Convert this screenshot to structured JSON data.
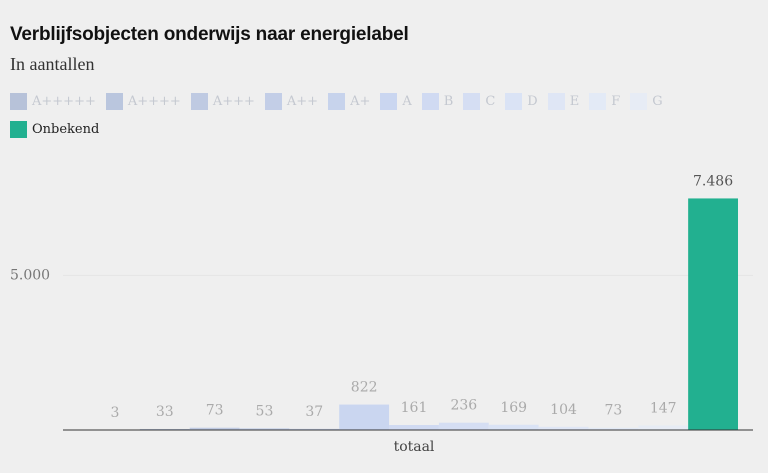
{
  "chart_data": {
    "type": "bar",
    "title": "Verblijfsobjecten onderwijs naar energielabel",
    "subtitle": "In aantallen",
    "categories": [
      "totaal"
    ],
    "series": [
      {
        "name": "A+++++",
        "color": "#b7c2d9",
        "values": [
          3
        ]
      },
      {
        "name": "A++++",
        "color": "#bac6de",
        "values": [
          33
        ]
      },
      {
        "name": "A+++",
        "color": "#bfcae2",
        "values": [
          73
        ]
      },
      {
        "name": "A++",
        "color": "#c3cee7",
        "values": [
          53
        ]
      },
      {
        "name": "A+",
        "color": "#c7d3ec",
        "values": [
          37
        ]
      },
      {
        "name": "A",
        "color": "#cad6f0",
        "values": [
          822
        ]
      },
      {
        "name": "B",
        "color": "#d0daf2",
        "values": [
          161
        ]
      },
      {
        "name": "C",
        "color": "#d5def3",
        "values": [
          236
        ]
      },
      {
        "name": "D",
        "color": "#dae3f5",
        "values": [
          169
        ]
      },
      {
        "name": "E",
        "color": "#dfe6f5",
        "values": [
          104
        ]
      },
      {
        "name": "F",
        "color": "#e3eaf6",
        "values": [
          73
        ]
      },
      {
        "name": "G",
        "color": "#e7ecf5",
        "values": [
          147
        ]
      },
      {
        "name": "Onbekend",
        "color": "#22b090",
        "values": [
          7486
        ],
        "value_labels": [
          "7.486"
        ]
      }
    ],
    "ylim": [
      0,
      7500
    ],
    "yticks": [
      {
        "value": 5000,
        "label": "5.000"
      }
    ],
    "grid": true
  }
}
